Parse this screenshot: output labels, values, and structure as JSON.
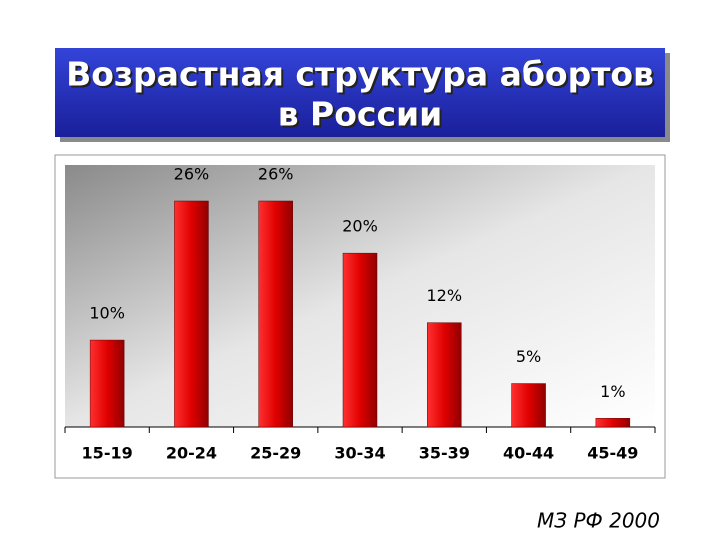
{
  "chart_data": {
    "type": "bar",
    "title": [
      "Возрастная структура абортов",
      "в России"
    ],
    "categories": [
      "15-19",
      "20-24",
      "25-29",
      "30-34",
      "35-39",
      "40-44",
      "45-49"
    ],
    "values": [
      10,
      26,
      26,
      20,
      12,
      5,
      1
    ],
    "value_labels": [
      "10%",
      "26%",
      "26%",
      "20%",
      "12%",
      "5%",
      "1%"
    ],
    "color": "#e00000",
    "source": "МЗ РФ 2000"
  }
}
